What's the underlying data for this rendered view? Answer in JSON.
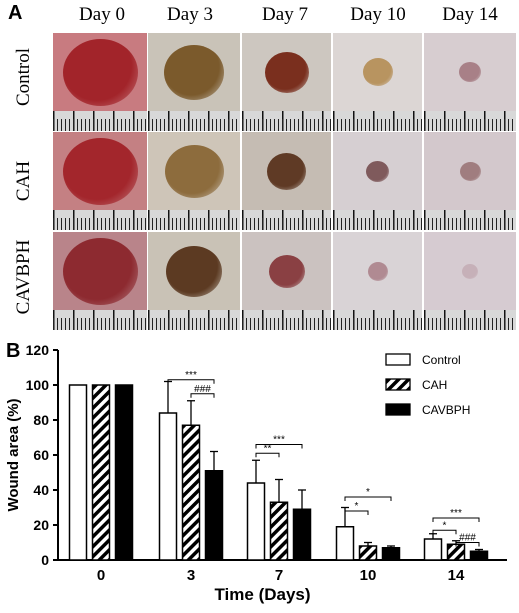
{
  "panel_a": {
    "letter": "A",
    "days": [
      "Day 0",
      "Day 3",
      "Day 7",
      "Day 10",
      "Day 14"
    ],
    "groups": [
      "Control",
      "CAH",
      "CAVBPH"
    ],
    "photos": [
      [
        {
          "bg": "#c87b80",
          "wound": "#a2242a",
          "size": 1.0
        },
        {
          "bg": "#c9c3b8",
          "wound": "#7b5a2c",
          "size": 0.82
        },
        {
          "bg": "#cdc7c0",
          "wound": "#7a2f1e",
          "size": 0.62
        },
        {
          "bg": "#dcd6d4",
          "wound": "#b89460",
          "size": 0.42
        },
        {
          "bg": "#d7cdd0",
          "wound": "#a88087",
          "size": 0.3
        }
      ],
      [
        {
          "bg": "#c48083",
          "wound": "#a3262c",
          "size": 1.0
        },
        {
          "bg": "#cec5b8",
          "wound": "#8d6c3d",
          "size": 0.8
        },
        {
          "bg": "#c5bcb3",
          "wound": "#5f3a25",
          "size": 0.55
        },
        {
          "bg": "#d6cfd2",
          "wound": "#7f5a5c",
          "size": 0.32
        },
        {
          "bg": "#d3c8cc",
          "wound": "#a07d7f",
          "size": 0.28
        }
      ],
      [
        {
          "bg": "#b9848a",
          "wound": "#8d2a30",
          "size": 1.0
        },
        {
          "bg": "#c9c2b6",
          "wound": "#5c3a22",
          "size": 0.76
        },
        {
          "bg": "#cbc2c0",
          "wound": "#8a4043",
          "size": 0.5
        },
        {
          "bg": "#d9d3d6",
          "wound": "#b08a92",
          "size": 0.28
        },
        {
          "bg": "#d6cbd1",
          "wound": "#c6b0b8",
          "size": 0.22
        }
      ]
    ]
  },
  "panel_b": {
    "letter": "B",
    "legend": [
      "Control",
      "CAH",
      "CAVBPH"
    ],
    "significance": [
      {
        "group": 1,
        "from": 0,
        "to": 2,
        "label": "***",
        "y": 103
      },
      {
        "group": 1,
        "from": 1,
        "to": 2,
        "label": "###",
        "y": 95
      },
      {
        "group": 2,
        "from": 0,
        "to": 1,
        "label": "**",
        "y": 61
      },
      {
        "group": 2,
        "from": 0,
        "to": 2,
        "label": "***",
        "y": 66
      },
      {
        "group": 3,
        "from": 0,
        "to": 2,
        "label": "*",
        "y": 36
      },
      {
        "group": 3,
        "from": 0,
        "to": 1,
        "label": "*",
        "y": 28
      },
      {
        "group": 4,
        "from": 0,
        "to": 2,
        "label": "***",
        "y": 24
      },
      {
        "group": 4,
        "from": 0,
        "to": 1,
        "label": "*",
        "y": 17
      },
      {
        "group": 4,
        "from": 1,
        "to": 2,
        "label": "###",
        "y": 10
      }
    ]
  },
  "chart_data": {
    "type": "bar",
    "categories": [
      "0",
      "3",
      "7",
      "10",
      "14"
    ],
    "xlabel": "Time (Days)",
    "ylabel": "Wound area (%)",
    "ylim": [
      0,
      120
    ],
    "yticks": [
      0,
      20,
      40,
      60,
      80,
      100,
      120
    ],
    "series": [
      {
        "name": "Control",
        "values": [
          100,
          84,
          44,
          19,
          12
        ],
        "errors": [
          0,
          18,
          13,
          11,
          3
        ],
        "fill": "white"
      },
      {
        "name": "CAH",
        "values": [
          100,
          77,
          33,
          8,
          9
        ],
        "errors": [
          0,
          14,
          13,
          2,
          2
        ],
        "fill": "hatch"
      },
      {
        "name": "CAVBPH",
        "values": [
          100,
          51,
          29,
          7,
          5
        ],
        "errors": [
          0,
          11,
          11,
          1,
          1
        ],
        "fill": "black"
      }
    ],
    "legend_position": "top-right"
  }
}
